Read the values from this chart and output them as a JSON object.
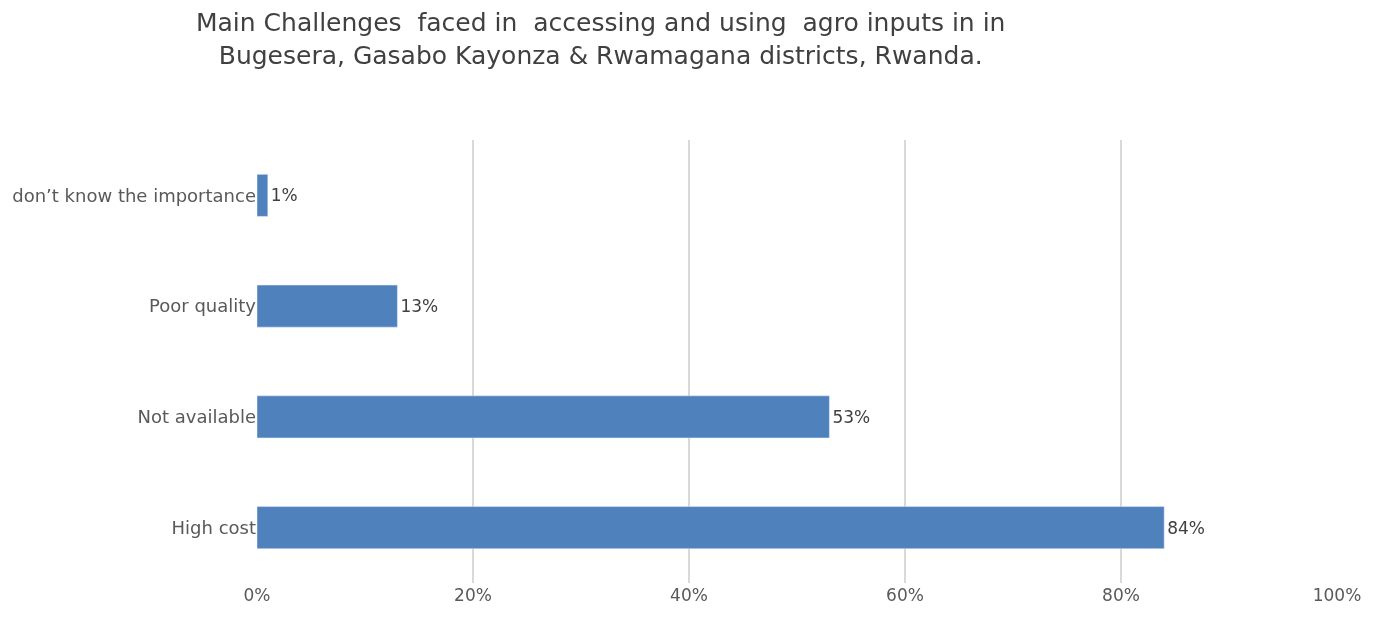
{
  "chart_data": {
    "type": "bar",
    "orientation": "horizontal",
    "title": "Main Challenges  faced in  accessing and using  agro inputs in in\nBugesera, Gasabo Kayonza & Rwamagana districts, Rwanda.",
    "categories": [
      "don’t know the importance",
      "Poor quality",
      "Not available",
      "High cost"
    ],
    "values": [
      1,
      13,
      53,
      84
    ],
    "value_labels": [
      "1%",
      "13%",
      "53%",
      "84%"
    ],
    "color": "#4f81bd",
    "xlim": [
      0,
      100
    ],
    "xticks": [
      {
        "value": 0,
        "label": "0%"
      },
      {
        "value": 20,
        "label": "20%"
      },
      {
        "value": 40,
        "label": "40%"
      },
      {
        "value": 60,
        "label": "60%"
      },
      {
        "value": 80,
        "label": "80%"
      },
      {
        "value": 100,
        "label": "100%"
      }
    ],
    "grid": "x"
  }
}
